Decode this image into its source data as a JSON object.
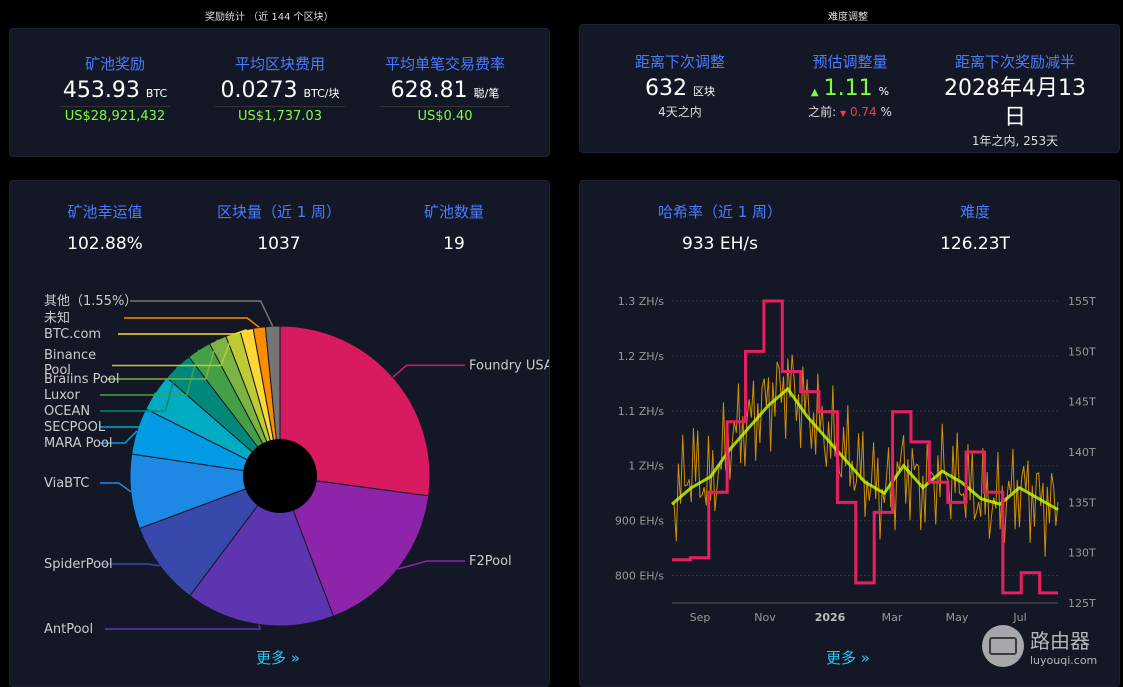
{
  "reward_section": {
    "title": "奖励统计 （近 144 个区块）",
    "cols": [
      {
        "label": "矿池奖励",
        "value": "453.93",
        "unit": "BTC",
        "usd": "US$28,921,432"
      },
      {
        "label": "平均区块费用",
        "value": "0.0273",
        "unit": "BTC/块",
        "usd": "US$1,737.03"
      },
      {
        "label": "平均单笔交易费率",
        "value": "628.81",
        "unit": "聪/笔",
        "usd": "US$0.40"
      }
    ]
  },
  "difficulty_section": {
    "title": "难度调整",
    "next_adjust_label": "距离下次调整",
    "next_adjust_value": "632",
    "next_adjust_unit": "区块",
    "next_adjust_sub": "4天之内",
    "estimate_label": "预估调整量",
    "estimate_value": "1.11",
    "estimate_unit": "%",
    "previous_label": "之前:",
    "previous_value": "0.74",
    "previous_unit": "%",
    "halving_label": "距离下次奖励减半",
    "halving_value_line1": "2028年4月13",
    "halving_value_line2": "日",
    "halving_sub": "1年之内, 253天"
  },
  "pool_card": {
    "stats": [
      {
        "label": "矿池幸运值",
        "value": "102.88%"
      },
      {
        "label": "区块量（近 1 周）",
        "value": "1037"
      },
      {
        "label": "矿池数量",
        "value": "19"
      }
    ],
    "more": "更多 »"
  },
  "pie": {
    "slices": [
      {
        "name": "Foundry USA",
        "value": 27,
        "color": "#d81b60"
      },
      {
        "name": "F2Pool",
        "value": 17,
        "color": "#8e24aa"
      },
      {
        "name": "AntPool",
        "value": 16,
        "color": "#5e35b1"
      },
      {
        "name": "SpiderPool",
        "value": 9,
        "color": "#3949ab"
      },
      {
        "name": "ViaBTC",
        "value": 8,
        "color": "#1e88e5"
      },
      {
        "name": "MARA Pool",
        "value": 5,
        "color": "#039be5"
      },
      {
        "name": "SECPOOL",
        "value": 4,
        "color": "#00acc1"
      },
      {
        "name": "OCEAN",
        "value": 3.2,
        "color": "#00897b"
      },
      {
        "name": "Luxor",
        "value": 2.6,
        "color": "#43a047"
      },
      {
        "name": "Braiins Pool",
        "value": 1.9,
        "color": "#7cb342"
      },
      {
        "name": "Binance Pool",
        "value": 1.6,
        "color": "#c0ca33"
      },
      {
        "name": "BTC.com",
        "value": 1.4,
        "color": "#fdd835"
      },
      {
        "name": "未知",
        "value": 1.3,
        "color": "#fb8c00"
      },
      {
        "name": "其他（1.55%）",
        "value": 1.55,
        "color": "#757575"
      }
    ]
  },
  "hash_card": {
    "stats": [
      {
        "label": "哈希率（近 1 周）",
        "value": "933 EH/s"
      },
      {
        "label": "难度",
        "value": "126.23T"
      }
    ],
    "more": "更多 »"
  },
  "chart_data": {
    "type": "line",
    "left_ticks": [
      "1.3 ZH/s",
      "1.2 ZH/s",
      "1.1 ZH/s",
      "1 ZH/s",
      "900 EH/s",
      "800 EH/s"
    ],
    "right_ticks": [
      "155T",
      "150T",
      "145T",
      "140T",
      "135T",
      "130T",
      "125T"
    ],
    "x_ticks": [
      "Sep",
      "Nov",
      "2026",
      "Mar",
      "May",
      "Jul"
    ],
    "ylim_hash": [
      750,
      1300
    ],
    "ylim_diff": [
      125,
      155
    ],
    "series": [
      {
        "color": "#f0a500",
        "values": [
          930,
          1000,
          960,
          1050,
          1080,
          1120,
          1150,
          1100,
          1060,
          1020,
          980,
          950,
          1000,
          960,
          990,
          970,
          940,
          930,
          960,
          940,
          920
        ]
      },
      {
        "color": "#c6ff00",
        "values": [
          930,
          960,
          980,
          1030,
          1070,
          1110,
          1140,
          1090,
          1050,
          1010,
          970,
          950,
          1000,
          960,
          990,
          970,
          940,
          930,
          960,
          940,
          920
        ]
      },
      {
        "color": "#e91e63",
        "values": [
          129.3,
          129.5,
          136,
          143,
          150,
          155,
          148,
          146,
          144,
          135,
          127,
          134,
          144,
          141,
          137,
          135,
          140,
          136,
          126,
          128,
          126
        ]
      }
    ]
  },
  "watermark": {
    "text": "路由器",
    "sub": "luyouqi.com"
  }
}
